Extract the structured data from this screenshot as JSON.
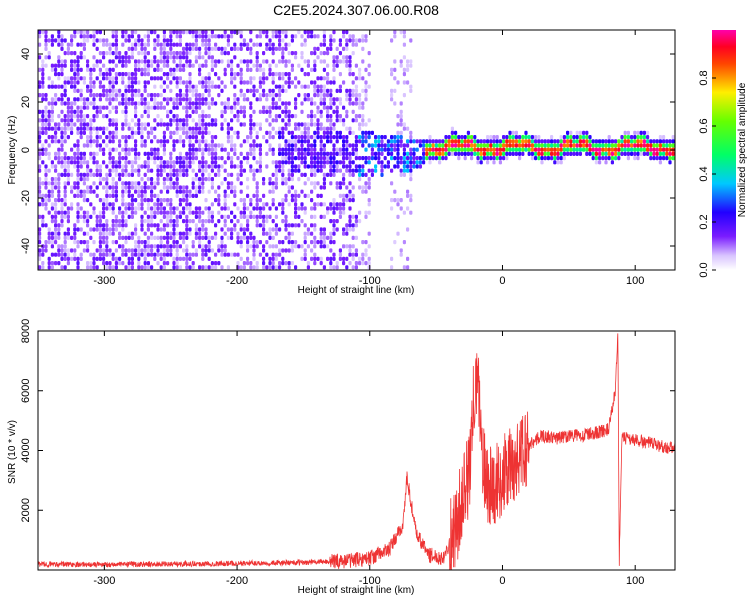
{
  "title": "C2E5.2024.307.06.00.R08",
  "chart_data": [
    {
      "type": "heatmap",
      "xlabel": "Height of straight line (km)",
      "ylabel": "Frequency (Hz)",
      "xlim": [
        -350,
        130
      ],
      "ylim": [
        -50,
        50
      ],
      "x_ticks": [
        -300,
        -200,
        -100,
        0,
        100
      ],
      "y_ticks": [
        -40,
        -20,
        0,
        20,
        40
      ],
      "colorbar": {
        "label": "Normalized spectral amplitude",
        "range": [
          0,
          1
        ],
        "ticks": [
          "0.0",
          "0.2",
          "0.4",
          "0.6",
          "0.8"
        ],
        "colormap": "white-violet-blue-cyan-green-yellow-red-magenta"
      },
      "regions": [
        {
          "x_range": [
            -350,
            -110
          ],
          "freq_range": [
            -50,
            50
          ],
          "amplitude": 0.1,
          "pattern": "broadband noise"
        },
        {
          "x_range": [
            -110,
            -60
          ],
          "freq_range": [
            -10,
            8
          ],
          "amplitude": 0.25,
          "pattern": "narrowing band"
        },
        {
          "x_range": [
            -60,
            130
          ],
          "freq_center": 2,
          "freq_halfwidth": 3,
          "amplitude": 0.9,
          "pattern": "narrow oscillating line"
        }
      ]
    },
    {
      "type": "line",
      "xlabel": "Height of straight line (km)",
      "ylabel": "SNR (10 * v/v)",
      "xlim": [
        -350,
        130
      ],
      "ylim": [
        0,
        8000
      ],
      "x_ticks": [
        -300,
        -200,
        -100,
        0,
        100
      ],
      "y_ticks": [
        2000,
        4000,
        6000,
        8000
      ],
      "color": "#ee3333",
      "series": [
        {
          "x": [
            -350,
            -300,
            -250,
            -200,
            -150,
            -120,
            -100,
            -85,
            -75,
            -72,
            -65,
            -55,
            -45,
            -35,
            -30,
            -25,
            -22,
            -18,
            -15,
            -10,
            -5,
            0,
            10,
            20,
            30,
            40,
            50,
            60,
            70,
            80,
            85,
            87,
            88,
            90,
            95,
            105,
            115,
            125,
            130
          ],
          "y": [
            200,
            180,
            200,
            220,
            250,
            300,
            400,
            700,
            1500,
            3100,
            1200,
            500,
            400,
            1400,
            2500,
            3200,
            5500,
            6300,
            3500,
            2800,
            2900,
            3100,
            3600,
            4200,
            4500,
            4400,
            4500,
            4500,
            4600,
            4700,
            6000,
            8000,
            300,
            4400,
            4400,
            4300,
            4200,
            4100,
            4100
          ]
        }
      ]
    }
  ]
}
